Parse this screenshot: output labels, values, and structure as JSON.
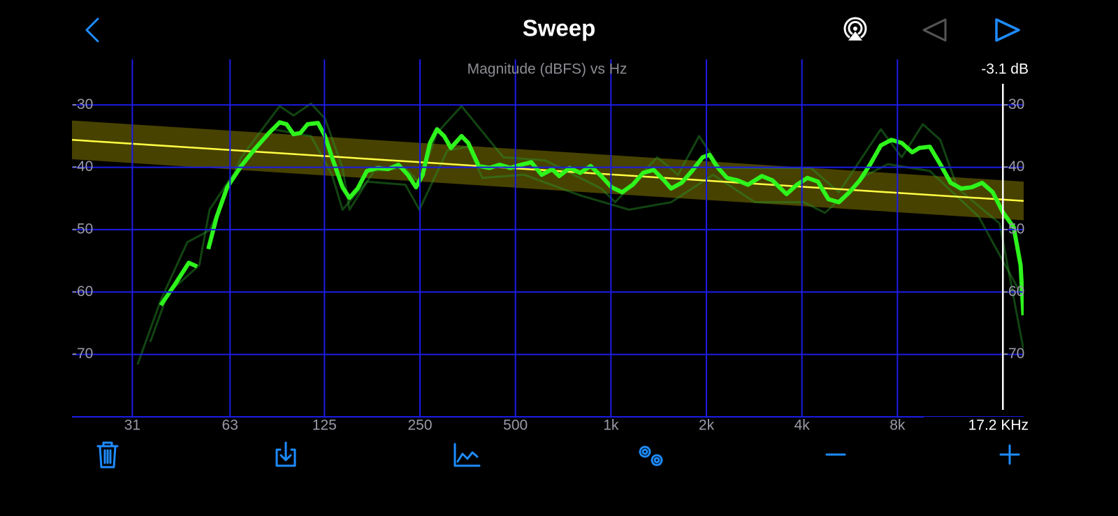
{
  "header": {
    "title": "Sweep"
  },
  "chart_data": {
    "type": "line",
    "title": "Magnitude (dBFS) vs Hz",
    "xscale": "log",
    "xlim": [
      20,
      20000
    ],
    "xticks": [
      31,
      63,
      125,
      250,
      500,
      {
        "value": 1000,
        "label": "1k"
      },
      {
        "value": 2000,
        "label": "2k"
      },
      {
        "value": 4000,
        "label": "4k"
      },
      {
        "value": 8000,
        "label": "8k"
      }
    ],
    "ylim": [
      -80,
      -22.7
    ],
    "yticks": [
      -30,
      -40,
      -50,
      -60,
      -70
    ],
    "grid": true,
    "grid_color": "#1c1ce6",
    "series": [
      {
        "color": "rgba(40,150,40,0.45)",
        "width": 3,
        "x": [
          32.2,
          38.1,
          46.2,
          54.3,
          68.3,
          90.3,
          99.9,
          113.4,
          125.5,
          142.5,
          149.9,
          179,
          225,
          249,
          283,
          338,
          458,
          621,
          932,
          1031,
          1398,
          1628,
          1896,
          2208,
          3150,
          4270,
          5231,
          7092,
          8254,
          9618,
          10916,
          12390,
          16800,
          19960
        ],
        "values": [
          -71.6,
          -61.3,
          -52.0,
          -50.1,
          -38.4,
          -30.2,
          -31.7,
          -29.8,
          -32.2,
          -40.1,
          -46.8,
          -40.6,
          -40.1,
          -42.5,
          -34.5,
          -30.2,
          -38.4,
          -38.9,
          -43.4,
          -45.6,
          -38.4,
          -41.2,
          -35.0,
          -40.1,
          -40.1,
          -40.1,
          -44.0,
          -33.9,
          -38.4,
          -33.1,
          -35.6,
          -43.4,
          -49.0,
          -69.1
        ]
      },
      {
        "color": "rgba(40,150,40,0.45)",
        "width": 3,
        "x": [
          35.3,
          40.1,
          50.4,
          54.3,
          63.3,
          85.8,
          113.4,
          132,
          142.5,
          170,
          225,
          249,
          305,
          355,
          393,
          533,
          800,
          1141,
          1548,
          2098,
          2844,
          4058,
          4726,
          6408,
          7460,
          10120,
          14430,
          19560
        ],
        "values": [
          -68.0,
          -60.2,
          -55.7,
          -46.8,
          -41.7,
          -33.9,
          -35.0,
          -41.2,
          -46.8,
          -42.3,
          -42.8,
          -46.8,
          -37.3,
          -36.7,
          -41.7,
          -41.2,
          -44.5,
          -46.8,
          -45.6,
          -41.2,
          -45.6,
          -45.6,
          -47.3,
          -41.2,
          -39.5,
          -40.6,
          -47.9,
          -60.2
        ]
      },
      {
        "color": "#2ef51c",
        "width": 6,
        "x": [
          38.1,
          42.2,
          46.7,
          49.6,
          51.7,
          53.8,
          57.2,
          61.7,
          68.3,
          75.6,
          83.6,
          90.3,
          94.9,
          99.9,
          105,
          110.6,
          119.3,
          125.5,
          132,
          142.5,
          149.9,
          159,
          170,
          184,
          198,
          214,
          229,
          243,
          255,
          269,
          283,
          298,
          313,
          338,
          355,
          383,
          414,
          446,
          482,
          520,
          561,
          605,
          653,
          687,
          741,
          800,
          863,
          932,
          1005,
          1085,
          1171,
          1263,
          1363,
          1470,
          1548,
          1670,
          1801,
          1944,
          2045,
          2153,
          2322,
          2506,
          2704,
          2992,
          3229,
          3576,
          3856,
          4162,
          4492,
          4847,
          5231,
          5642,
          6089,
          6571,
          7092,
          7652,
          8254,
          8908,
          9376,
          10120,
          10916,
          11780,
          12712,
          13720,
          14800,
          15972,
          17236,
          18600,
          19560,
          19960
        ],
        "values": [
          -62.1,
          -58.8,
          -55.3,
          -55.9,
          null,
          -53.1,
          -47.9,
          -43.2,
          -39.8,
          -37.0,
          -34.5,
          -32.8,
          -33.1,
          -34.7,
          -34.5,
          -33.1,
          -32.9,
          -35.0,
          -38.4,
          -43.2,
          -44.9,
          -43.4,
          -40.6,
          -40.1,
          -40.3,
          -39.6,
          -41.2,
          -43.2,
          -41.2,
          -36.1,
          -33.9,
          -35.0,
          -36.9,
          -35.0,
          -36.1,
          -39.8,
          -40.1,
          -39.6,
          -40.1,
          -39.6,
          -39.2,
          -41.2,
          -40.3,
          -41.4,
          -40.1,
          -40.9,
          -39.8,
          -41.4,
          -43.2,
          -44.0,
          -42.8,
          -40.9,
          -40.4,
          -42.1,
          -43.4,
          -42.5,
          -40.6,
          -38.4,
          -38.0,
          -39.8,
          -41.7,
          -42.1,
          -42.8,
          -41.4,
          -42.1,
          -44.3,
          -42.8,
          -41.7,
          -42.3,
          -45.1,
          -45.6,
          -44.0,
          -42.1,
          -39.5,
          -36.5,
          -35.6,
          -36.1,
          -37.6,
          -36.9,
          -36.7,
          -39.5,
          -42.5,
          -43.4,
          -43.2,
          -42.5,
          -44.0,
          -47.3,
          -49.6,
          -55.7,
          -63.7
        ]
      }
    ],
    "trend": {
      "color": "#ffff44",
      "band_color": "rgba(120,110,0,0.6)",
      "x": [
        20,
        20000
      ],
      "values": [
        -35.6,
        -45.4
      ],
      "band": 3.1
    },
    "cursor": {
      "x": 17200,
      "label": "17.2 KHz",
      "level_label": "-3.1 dB"
    }
  }
}
